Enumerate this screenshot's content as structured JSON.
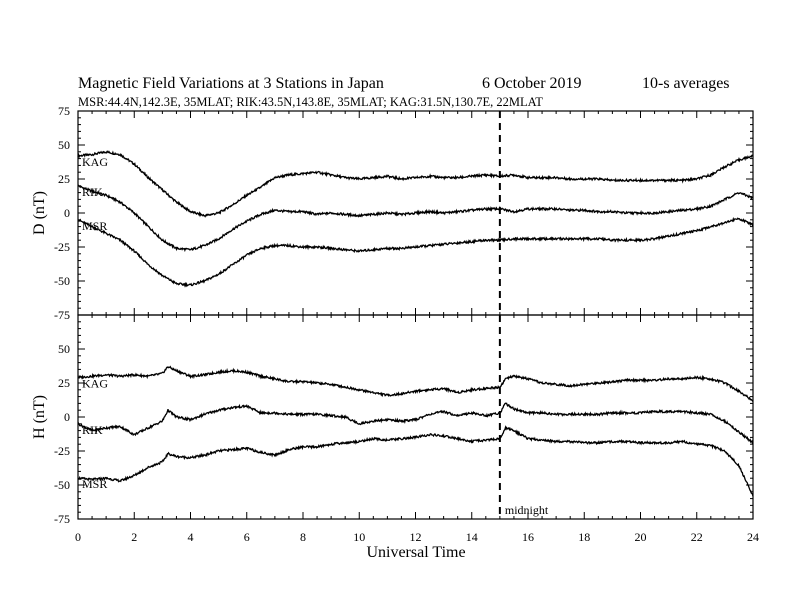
{
  "chart_data": [
    {
      "panel": "D",
      "type": "line",
      "title": "Magnetic Field Variations at 3 Stations in Japan",
      "date": "6   October 2019",
      "averaging": "10-s averages",
      "subtitle": "MSR:44.4N,142.3E, 35MLAT;  RIK:43.5N,143.8E, 35MLAT;  KAG:31.5N,130.7E, 22MLAT",
      "ylabel": "D (nT)",
      "xlim": [
        0,
        24
      ],
      "ylim": [
        -75,
        75
      ],
      "yticks": [
        "75",
        "50",
        "25",
        "0",
        "-25",
        "-50",
        "-75"
      ],
      "x": [
        0,
        0.5,
        1,
        1.5,
        2,
        2.5,
        3,
        3.5,
        4,
        4.5,
        5,
        5.5,
        6,
        6.5,
        7,
        7.5,
        8,
        8.5,
        9,
        9.5,
        10,
        10.5,
        11,
        11.5,
        12,
        12.5,
        13,
        13.5,
        14,
        14.5,
        15,
        15.5,
        16,
        16.5,
        17,
        17.5,
        18,
        18.5,
        19,
        19.5,
        20,
        20.5,
        21,
        21.5,
        22,
        22.5,
        23,
        23.5,
        24
      ],
      "series": [
        {
          "name": "KAG",
          "values": [
            42,
            43,
            45,
            43,
            36,
            26,
            17,
            8,
            1,
            -2,
            0,
            6,
            13,
            19,
            26,
            28,
            29,
            30,
            28,
            26,
            25,
            26,
            27,
            25,
            26,
            27,
            26,
            26,
            27,
            28,
            27,
            28,
            26,
            26,
            26,
            25,
            25,
            25,
            24,
            24,
            24,
            24,
            24,
            24,
            25,
            28,
            34,
            39,
            42
          ]
        },
        {
          "name": "RIK",
          "values": [
            20,
            16,
            13,
            8,
            0,
            -10,
            -20,
            -26,
            -27,
            -24,
            -19,
            -12,
            -6,
            -1,
            2,
            1,
            1,
            -1,
            0,
            -1,
            -2,
            -1,
            0,
            -1,
            0,
            1,
            0,
            1,
            2,
            3,
            3,
            1,
            3,
            3,
            3,
            2,
            2,
            1,
            1,
            0,
            0,
            0,
            1,
            2,
            3,
            5,
            10,
            15,
            11
          ]
        },
        {
          "name": "MSR",
          "values": [
            -5,
            -10,
            -15,
            -20,
            -28,
            -38,
            -46,
            -52,
            -53,
            -50,
            -45,
            -38,
            -31,
            -26,
            -24,
            -24,
            -25,
            -25,
            -26,
            -27,
            -28,
            -27,
            -26,
            -26,
            -25,
            -24,
            -23,
            -22,
            -21,
            -20,
            -20,
            -19,
            -19,
            -19,
            -19,
            -19,
            -19,
            -19,
            -20,
            -20,
            -20,
            -19,
            -17,
            -15,
            -13,
            -10,
            -7,
            -4,
            -9
          ]
        }
      ]
    },
    {
      "panel": "H",
      "type": "line",
      "ylabel": "H (nT)",
      "xlabel": "Universal Time",
      "xticks": [
        "0",
        "2",
        "4",
        "6",
        "8",
        "10",
        "12",
        "14",
        "16",
        "18",
        "20",
        "22",
        "24"
      ],
      "xlim": [
        0,
        24
      ],
      "ylim": [
        -75,
        75
      ],
      "yticks": [
        "50",
        "25",
        "0",
        "-25",
        "-50",
        "-75"
      ],
      "marker_label": "midnight",
      "marker_x": 15,
      "x": [
        0,
        0.5,
        1,
        1.5,
        2,
        2.5,
        3,
        3.2,
        3.5,
        4,
        4.5,
        5,
        5.5,
        6,
        6.5,
        7,
        7.5,
        8,
        8.5,
        9,
        9.5,
        10,
        10.5,
        11,
        11.5,
        12,
        12.5,
        13,
        13.5,
        14,
        14.5,
        15,
        15.2,
        15.5,
        16,
        16.5,
        17,
        17.5,
        18,
        18.5,
        19,
        19.5,
        20,
        20.5,
        21,
        21.5,
        22,
        22.5,
        23,
        23.5,
        24
      ],
      "series": [
        {
          "name": "KAG",
          "values": [
            29,
            30,
            31,
            30,
            31,
            30,
            32,
            37,
            34,
            30,
            31,
            33,
            34,
            33,
            30,
            28,
            26,
            26,
            25,
            24,
            22,
            20,
            18,
            16,
            17,
            19,
            20,
            21,
            18,
            20,
            21,
            22,
            28,
            30,
            28,
            25,
            24,
            23,
            24,
            25,
            26,
            27,
            27,
            27,
            28,
            28,
            29,
            28,
            25,
            19,
            12
          ]
        },
        {
          "name": "RIK",
          "values": [
            -5,
            -10,
            -8,
            -7,
            -13,
            -8,
            -3,
            5,
            0,
            -2,
            2,
            5,
            7,
            8,
            3,
            3,
            2,
            2,
            2,
            1,
            0,
            -5,
            -3,
            -2,
            -3,
            -2,
            2,
            4,
            1,
            3,
            1,
            3,
            10,
            6,
            3,
            3,
            2,
            2,
            2,
            2,
            3,
            3,
            3,
            4,
            4,
            4,
            3,
            2,
            -3,
            -11,
            -19
          ]
        },
        {
          "name": "MSR",
          "values": [
            -45,
            -46,
            -45,
            -47,
            -43,
            -37,
            -33,
            -27,
            -29,
            -30,
            -28,
            -25,
            -24,
            -23,
            -26,
            -28,
            -24,
            -22,
            -22,
            -20,
            -19,
            -18,
            -16,
            -17,
            -16,
            -15,
            -13,
            -14,
            -16,
            -18,
            -17,
            -16,
            -8,
            -10,
            -16,
            -17,
            -18,
            -18,
            -19,
            -19,
            -18,
            -18,
            -19,
            -19,
            -19,
            -18,
            -20,
            -21,
            -25,
            -36,
            -58
          ]
        }
      ]
    }
  ]
}
